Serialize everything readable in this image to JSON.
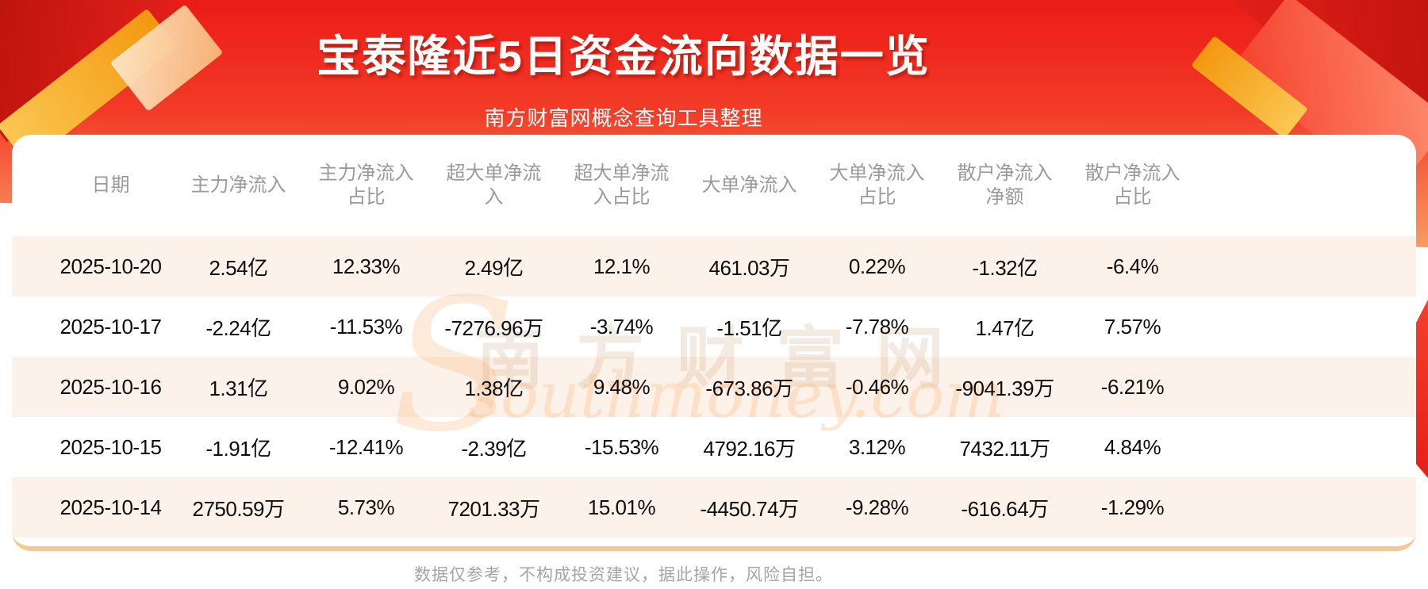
{
  "banner": {
    "title": "宝泰隆近5日资金流向数据一览",
    "subtitle": "南方财富网概念查询工具整理"
  },
  "watermark": {
    "cn": "南方财富网",
    "en": "southmoney.com",
    "swoosh_icon": "s-curve"
  },
  "footer": {
    "disclaimer": "数据仅参考，不构成投资建议，据此操作，风险自担。"
  },
  "colors": {
    "banner_red_top": "#ec1b17",
    "banner_red_mid": "#f23b27",
    "banner_orange_bottom": "#f99c62",
    "row_stripe_peach": "#fdf2e9",
    "card_bottom_rule": "#f6c793",
    "header_text": "#9a9a9a",
    "body_text": "#0d0d0d",
    "title_text": "#ffffff",
    "disclaimer_text": "#a5a5a5"
  },
  "chart_data": {
    "type": "table",
    "title": "宝泰隆近5日资金流向数据一览",
    "column_labels": [
      "日期",
      "主力净流入",
      "主力净流入占比",
      "超大单净流入",
      "超大单净流入占比",
      "大单净流入",
      "大单净流入占比",
      "散户净流入净额",
      "散户净流入占比"
    ],
    "columns": [
      {
        "line1": "日期",
        "line2": ""
      },
      {
        "line1": "主力净流入",
        "line2": ""
      },
      {
        "line1": "主力净流入",
        "line2": "占比"
      },
      {
        "line1": "超大单净流",
        "line2": "入"
      },
      {
        "line1": "超大单净流",
        "line2": "入占比"
      },
      {
        "line1": "大单净流入",
        "line2": ""
      },
      {
        "line1": "大单净流入",
        "line2": "占比"
      },
      {
        "line1": "散户净流入",
        "line2": "净额"
      },
      {
        "line1": "散户净流入",
        "line2": "占比"
      }
    ],
    "rows": [
      {
        "cells": [
          "2025-10-20",
          "2.54亿",
          "12.33%",
          "2.49亿",
          "12.1%",
          "461.03万",
          "0.22%",
          "-1.32亿",
          "-6.4%"
        ]
      },
      {
        "cells": [
          "2025-10-17",
          "-2.24亿",
          "-11.53%",
          "-7276.96万",
          "-3.74%",
          "-1.51亿",
          "-7.78%",
          "1.47亿",
          "7.57%"
        ]
      },
      {
        "cells": [
          "2025-10-16",
          "1.31亿",
          "9.02%",
          "1.38亿",
          "9.48%",
          "-673.86万",
          "-0.46%",
          "-9041.39万",
          "-6.21%"
        ]
      },
      {
        "cells": [
          "2025-10-15",
          "-1.91亿",
          "-12.41%",
          "-2.39亿",
          "-15.53%",
          "4792.16万",
          "3.12%",
          "7432.11万",
          "4.84%"
        ]
      },
      {
        "cells": [
          "2025-10-14",
          "2750.59万",
          "5.73%",
          "7201.33万",
          "15.01%",
          "-4450.74万",
          "-9.28%",
          "-616.64万",
          "-1.29%"
        ]
      }
    ]
  }
}
